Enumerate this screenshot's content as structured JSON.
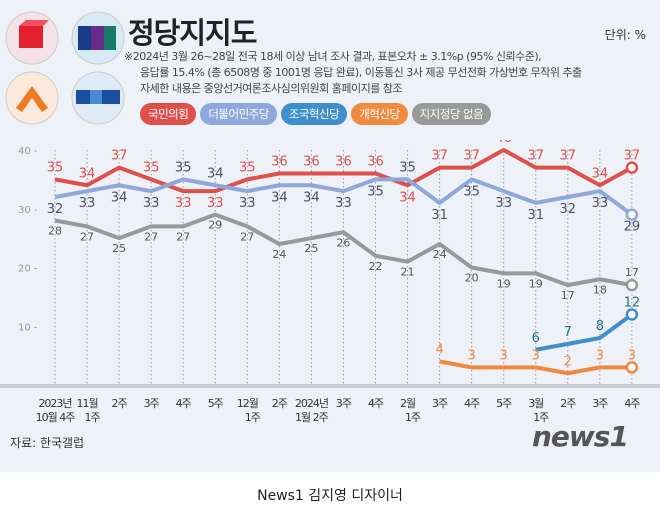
{
  "title": "정당지지도",
  "unit": "단위: %",
  "notes": [
    "※2024년 3월 26~28일 전국 18세 이상 남녀 조사 결과, 표본오차 ± 3.1%p (95% 신뢰수준),",
    "응답률 15.4% (총 6508명 중 1001명 응답 완료), 이동통신 3사 제공 무선전화 가상번호 무작위 추출",
    "자세한 내용은 중앙선거여론조사심의위원회 홈페이지를 참조"
  ],
  "source": "자료: 한국갤럽",
  "brand": "news1",
  "caption": "News1 김지영 디자이너",
  "chart_data": {
    "type": "line",
    "ylim": [
      0,
      40
    ],
    "yticks": [
      10,
      20,
      30,
      40
    ],
    "grid": "vertical dotted lines at each category",
    "legend": "top",
    "categories": [
      "2023년\n10월 4주",
      "11월\n1주",
      "2주",
      "3주",
      "4주",
      "5주",
      "12월\n1주",
      "2주",
      "2024년\n1월 2주",
      "3주",
      "4주",
      "2월\n1주",
      "3주",
      "4주",
      "5주",
      "3월\n1주",
      "2주",
      "3주",
      "4주"
    ],
    "series": [
      {
        "name": "국민의힘",
        "color": "#e0504a",
        "values": [
          35,
          34,
          37,
          35,
          33,
          33,
          35,
          36,
          36,
          36,
          36,
          34,
          37,
          37,
          40,
          37,
          37,
          34,
          37
        ]
      },
      {
        "name": "더불어민주당",
        "color": "#8fa8dc",
        "label_color": "#4a5070",
        "values": [
          32,
          33,
          34,
          33,
          35,
          34,
          33,
          34,
          34,
          33,
          35,
          35,
          31,
          35,
          33,
          31,
          32,
          33,
          29
        ]
      },
      {
        "name": "조국혁신당",
        "color": "#3f8fcf",
        "label_color": "#2d6f8f",
        "values": [
          null,
          null,
          null,
          null,
          null,
          null,
          null,
          null,
          null,
          null,
          null,
          null,
          null,
          null,
          null,
          6,
          7,
          8,
          12
        ]
      },
      {
        "name": "개혁신당",
        "color": "#f08a40",
        "values": [
          null,
          null,
          null,
          null,
          null,
          null,
          null,
          null,
          null,
          null,
          null,
          null,
          4,
          3,
          3,
          3,
          2,
          3,
          3
        ]
      },
      {
        "name": "지지정당 없음",
        "color": "#999999",
        "label_color": "#555555",
        "values": [
          28,
          27,
          25,
          27,
          27,
          29,
          27,
          24,
          25,
          26,
          22,
          21,
          24,
          20,
          19,
          19,
          17,
          18,
          17
        ]
      }
    ]
  }
}
